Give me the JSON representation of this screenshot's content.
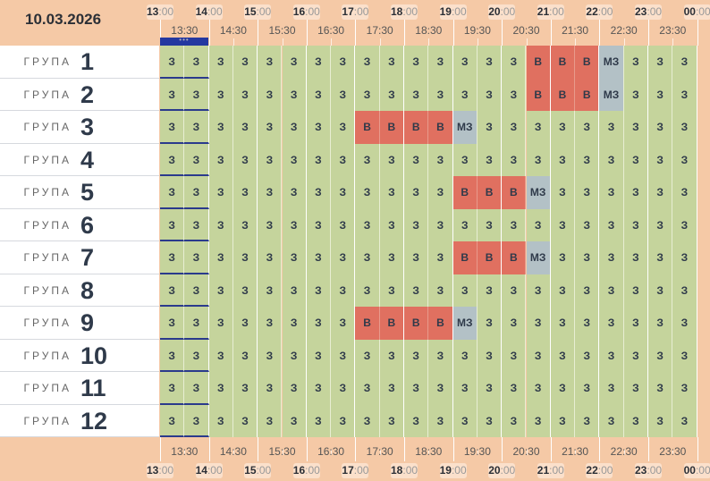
{
  "date": "10.03.2026",
  "hours": [
    "13",
    "14",
    "15",
    "16",
    "17",
    "18",
    "19",
    "20",
    "21",
    "22",
    "23",
    "00"
  ],
  "minutes_suffix": ":00",
  "halves": [
    "13:30",
    "14:30",
    "15:30",
    "16:30",
    "17:30",
    "18:30",
    "19:30",
    "20:30",
    "21:30",
    "22:30",
    "23:30"
  ],
  "group_word": "ГРУПА",
  "more_indicator": "•••",
  "legend": {
    "З": "З",
    "В": "В",
    "МЗ": "МЗ"
  },
  "colors": {
    "free": "#c5d49c",
    "busy": "#e07060",
    "mz": "#b3c1c6",
    "header": "#f5c9a6",
    "current": "#2438a0"
  },
  "rows": [
    {
      "n": "1",
      "cells": [
        "З",
        "З",
        "З",
        "З",
        "З",
        "З",
        "З",
        "З",
        "З",
        "З",
        "З",
        "З",
        "З",
        "З",
        "З",
        "В",
        "В",
        "В",
        "МЗ",
        "З",
        "З",
        "З"
      ]
    },
    {
      "n": "2",
      "cells": [
        "З",
        "З",
        "З",
        "З",
        "З",
        "З",
        "З",
        "З",
        "З",
        "З",
        "З",
        "З",
        "З",
        "З",
        "З",
        "В",
        "В",
        "В",
        "МЗ",
        "З",
        "З",
        "З"
      ]
    },
    {
      "n": "3",
      "cells": [
        "З",
        "З",
        "З",
        "З",
        "З",
        "З",
        "З",
        "З",
        "В",
        "В",
        "В",
        "В",
        "МЗ",
        "З",
        "З",
        "З",
        "З",
        "З",
        "З",
        "З",
        "З",
        "З"
      ]
    },
    {
      "n": "4",
      "cells": [
        "З",
        "З",
        "З",
        "З",
        "З",
        "З",
        "З",
        "З",
        "З",
        "З",
        "З",
        "З",
        "З",
        "З",
        "З",
        "З",
        "З",
        "З",
        "З",
        "З",
        "З",
        "З"
      ]
    },
    {
      "n": "5",
      "cells": [
        "З",
        "З",
        "З",
        "З",
        "З",
        "З",
        "З",
        "З",
        "З",
        "З",
        "З",
        "З",
        "В",
        "В",
        "В",
        "МЗ",
        "З",
        "З",
        "З",
        "З",
        "З",
        "З"
      ]
    },
    {
      "n": "6",
      "cells": [
        "З",
        "З",
        "З",
        "З",
        "З",
        "З",
        "З",
        "З",
        "З",
        "З",
        "З",
        "З",
        "З",
        "З",
        "З",
        "З",
        "З",
        "З",
        "З",
        "З",
        "З",
        "З"
      ]
    },
    {
      "n": "7",
      "cells": [
        "З",
        "З",
        "З",
        "З",
        "З",
        "З",
        "З",
        "З",
        "З",
        "З",
        "З",
        "З",
        "В",
        "В",
        "В",
        "МЗ",
        "З",
        "З",
        "З",
        "З",
        "З",
        "З"
      ]
    },
    {
      "n": "8",
      "cells": [
        "З",
        "З",
        "З",
        "З",
        "З",
        "З",
        "З",
        "З",
        "З",
        "З",
        "З",
        "З",
        "З",
        "З",
        "З",
        "З",
        "З",
        "З",
        "З",
        "З",
        "З",
        "З"
      ]
    },
    {
      "n": "9",
      "cells": [
        "З",
        "З",
        "З",
        "З",
        "З",
        "З",
        "З",
        "З",
        "В",
        "В",
        "В",
        "В",
        "МЗ",
        "З",
        "З",
        "З",
        "З",
        "З",
        "З",
        "З",
        "З",
        "З"
      ]
    },
    {
      "n": "10",
      "cells": [
        "З",
        "З",
        "З",
        "З",
        "З",
        "З",
        "З",
        "З",
        "З",
        "З",
        "З",
        "З",
        "З",
        "З",
        "З",
        "З",
        "З",
        "З",
        "З",
        "З",
        "З",
        "З"
      ]
    },
    {
      "n": "11",
      "cells": [
        "З",
        "З",
        "З",
        "З",
        "З",
        "З",
        "З",
        "З",
        "З",
        "З",
        "З",
        "З",
        "З",
        "З",
        "З",
        "З",
        "З",
        "З",
        "З",
        "З",
        "З",
        "З"
      ]
    },
    {
      "n": "12",
      "cells": [
        "З",
        "З",
        "З",
        "З",
        "З",
        "З",
        "З",
        "З",
        "З",
        "З",
        "З",
        "З",
        "З",
        "З",
        "З",
        "З",
        "З",
        "З",
        "З",
        "З",
        "З",
        "З"
      ]
    }
  ]
}
